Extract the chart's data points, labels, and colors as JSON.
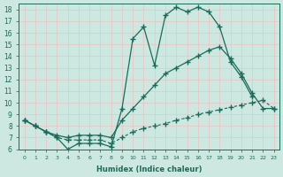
{
  "xlabel": "Humidex (Indice chaleur)",
  "bg_color": "#cce8e0",
  "line_color": "#1a6b5a",
  "grid_color": "#b8d8d0",
  "xlim": [
    -0.5,
    23.5
  ],
  "ylim": [
    6,
    18.5
  ],
  "yticks": [
    6,
    7,
    8,
    9,
    10,
    11,
    12,
    13,
    14,
    15,
    16,
    17,
    18
  ],
  "xticks": [
    0,
    1,
    2,
    3,
    4,
    5,
    6,
    7,
    8,
    9,
    10,
    11,
    12,
    13,
    14,
    15,
    16,
    17,
    18,
    19,
    20,
    21,
    22,
    23
  ],
  "line1_x": [
    0,
    1,
    2,
    3,
    4,
    5,
    6,
    7,
    8,
    9,
    10,
    11,
    12,
    13,
    14,
    15,
    16,
    17,
    18,
    19,
    20,
    21
  ],
  "line1_y": [
    8.5,
    8.0,
    7.5,
    7.0,
    6.0,
    6.5,
    6.5,
    6.5,
    6.2,
    9.5,
    15.5,
    16.5,
    13.2,
    17.5,
    18.2,
    17.8,
    18.2,
    17.8,
    16.5,
    13.5,
    12.2,
    10.5
  ],
  "line2_x": [
    0,
    1,
    2,
    3,
    4,
    5,
    6,
    7,
    8,
    9,
    10,
    11,
    12,
    13,
    14,
    15,
    16,
    17,
    18,
    19,
    20,
    21,
    22,
    23
  ],
  "line2_y": [
    8.5,
    8.0,
    7.5,
    7.2,
    7.0,
    7.2,
    7.2,
    7.2,
    7.0,
    8.5,
    9.5,
    10.5,
    11.5,
    12.5,
    13.0,
    13.5,
    14.0,
    14.5,
    14.8,
    13.8,
    12.5,
    10.8,
    9.5,
    9.5
  ],
  "line3_x": [
    0,
    1,
    2,
    3,
    4,
    5,
    6,
    7,
    8,
    9,
    10,
    11,
    12,
    13,
    14,
    15,
    16,
    17,
    18,
    19,
    20,
    21,
    22,
    23
  ],
  "line3_y": [
    8.5,
    8.0,
    7.5,
    7.0,
    6.8,
    6.8,
    6.8,
    6.8,
    6.5,
    7.0,
    7.5,
    7.8,
    8.0,
    8.2,
    8.5,
    8.7,
    9.0,
    9.2,
    9.4,
    9.6,
    9.8,
    10.0,
    10.2,
    9.5
  ]
}
